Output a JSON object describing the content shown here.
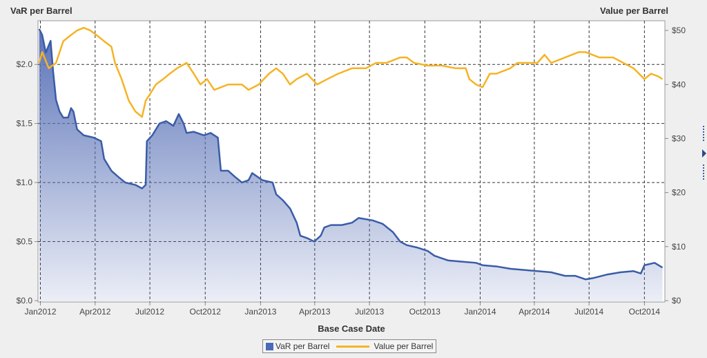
{
  "chart_data": {
    "type": "line",
    "title": "",
    "xlabel": "Base Case Date",
    "ylabel": "VaR per Barrel",
    "y2label": "Value per Barrel",
    "xlim": [
      "2011-12-28",
      "2014-11-04"
    ],
    "ylim": [
      0,
      2.37
    ],
    "y2lim": [
      0,
      51.8
    ],
    "yticks": [
      0,
      0.5,
      1.0,
      1.5,
      2.0
    ],
    "ytick_labels": [
      "$0.0",
      "$0.5",
      "$1.0",
      "$1.5",
      "$2.0"
    ],
    "y2ticks": [
      0,
      10,
      20,
      30,
      40,
      50
    ],
    "y2tick_labels": [
      "$0",
      "$10",
      "$20",
      "$30",
      "$40",
      "$50"
    ],
    "xticks": [
      "2012-01-01",
      "2012-04-01",
      "2012-07-01",
      "2012-10-01",
      "2013-01-01",
      "2013-04-01",
      "2013-07-01",
      "2013-10-01",
      "2014-01-01",
      "2014-04-01",
      "2014-07-01",
      "2014-10-01"
    ],
    "xtick_labels": [
      "Jan2012",
      "Apr2012",
      "Jul2012",
      "Oct2012",
      "Jan2013",
      "Apr2013",
      "Jul2013",
      "Oct2013",
      "Jan2014",
      "Apr2014",
      "Jul2014",
      "Oct2014"
    ],
    "grid": true,
    "legend_placement": "bottom",
    "colors": {
      "var_line": "#3a5ca8",
      "var_fill": "#5b73b8",
      "value_line": "#f5b324"
    },
    "series": [
      {
        "name": "VaR per Barrel",
        "axis": "left",
        "style": "area",
        "points": [
          [
            "2011-12-30",
            2.3
          ],
          [
            "2012-01-04",
            2.25
          ],
          [
            "2012-01-10",
            2.1
          ],
          [
            "2012-01-18",
            2.2
          ],
          [
            "2012-01-22",
            1.95
          ],
          [
            "2012-01-27",
            1.7
          ],
          [
            "2012-02-02",
            1.6
          ],
          [
            "2012-02-08",
            1.55
          ],
          [
            "2012-02-16",
            1.55
          ],
          [
            "2012-02-21",
            1.63
          ],
          [
            "2012-02-25",
            1.6
          ],
          [
            "2012-03-02",
            1.45
          ],
          [
            "2012-03-13",
            1.4
          ],
          [
            "2012-03-30",
            1.38
          ],
          [
            "2012-04-11",
            1.35
          ],
          [
            "2012-04-16",
            1.2
          ],
          [
            "2012-04-28",
            1.1
          ],
          [
            "2012-05-09",
            1.05
          ],
          [
            "2012-05-21",
            1.0
          ],
          [
            "2012-06-07",
            0.98
          ],
          [
            "2012-06-18",
            0.95
          ],
          [
            "2012-06-24",
            0.98
          ],
          [
            "2012-06-26",
            1.35
          ],
          [
            "2012-07-05",
            1.4
          ],
          [
            "2012-07-17",
            1.5
          ],
          [
            "2012-07-28",
            1.52
          ],
          [
            "2012-08-09",
            1.48
          ],
          [
            "2012-08-18",
            1.58
          ],
          [
            "2012-08-26",
            1.5
          ],
          [
            "2012-08-31",
            1.42
          ],
          [
            "2012-09-12",
            1.43
          ],
          [
            "2012-09-29",
            1.4
          ],
          [
            "2012-10-10",
            1.42
          ],
          [
            "2012-10-22",
            1.38
          ],
          [
            "2012-10-27",
            1.1
          ],
          [
            "2012-11-08",
            1.1
          ],
          [
            "2012-11-19",
            1.05
          ],
          [
            "2012-12-01",
            1.0
          ],
          [
            "2012-12-12",
            1.02
          ],
          [
            "2012-12-18",
            1.08
          ],
          [
            "2013-01-04",
            1.02
          ],
          [
            "2013-01-21",
            1.0
          ],
          [
            "2013-01-27",
            0.9
          ],
          [
            "2013-02-07",
            0.85
          ],
          [
            "2013-02-19",
            0.78
          ],
          [
            "2013-03-02",
            0.66
          ],
          [
            "2013-03-08",
            0.55
          ],
          [
            "2013-03-19",
            0.53
          ],
          [
            "2013-03-31",
            0.5
          ],
          [
            "2013-04-11",
            0.55
          ],
          [
            "2013-04-17",
            0.62
          ],
          [
            "2013-04-28",
            0.64
          ],
          [
            "2013-05-16",
            0.64
          ],
          [
            "2013-06-02",
            0.66
          ],
          [
            "2013-06-13",
            0.7
          ],
          [
            "2013-07-06",
            0.68
          ],
          [
            "2013-07-23",
            0.65
          ],
          [
            "2013-08-09",
            0.58
          ],
          [
            "2013-08-21",
            0.5
          ],
          [
            "2013-09-01",
            0.47
          ],
          [
            "2013-09-18",
            0.45
          ],
          [
            "2013-10-06",
            0.42
          ],
          [
            "2013-10-17",
            0.38
          ],
          [
            "2013-11-09",
            0.34
          ],
          [
            "2013-12-02",
            0.33
          ],
          [
            "2013-12-25",
            0.32
          ],
          [
            "2014-01-05",
            0.3
          ],
          [
            "2014-01-28",
            0.29
          ],
          [
            "2014-02-20",
            0.27
          ],
          [
            "2014-03-15",
            0.26
          ],
          [
            "2014-04-06",
            0.25
          ],
          [
            "2014-04-29",
            0.24
          ],
          [
            "2014-05-22",
            0.21
          ],
          [
            "2014-06-08",
            0.21
          ],
          [
            "2014-06-25",
            0.18
          ],
          [
            "2014-07-07",
            0.19
          ],
          [
            "2014-07-30",
            0.22
          ],
          [
            "2014-08-22",
            0.24
          ],
          [
            "2014-09-13",
            0.25
          ],
          [
            "2014-09-25",
            0.23
          ],
          [
            "2014-10-01",
            0.3
          ],
          [
            "2014-10-18",
            0.32
          ],
          [
            "2014-10-31",
            0.28
          ]
        ]
      },
      {
        "name": "Value per Barrel",
        "axis": "right",
        "style": "line",
        "points": [
          [
            "2011-12-30",
            44
          ],
          [
            "2012-01-04",
            46
          ],
          [
            "2012-01-15",
            43
          ],
          [
            "2012-01-27",
            44
          ],
          [
            "2012-02-08",
            48
          ],
          [
            "2012-02-19",
            49
          ],
          [
            "2012-03-02",
            50
          ],
          [
            "2012-03-13",
            50.5
          ],
          [
            "2012-03-24",
            50
          ],
          [
            "2012-04-05",
            49
          ],
          [
            "2012-04-16",
            48
          ],
          [
            "2012-04-28",
            47
          ],
          [
            "2012-05-04",
            44
          ],
          [
            "2012-05-15",
            41
          ],
          [
            "2012-05-27",
            37
          ],
          [
            "2012-06-07",
            35
          ],
          [
            "2012-06-18",
            34
          ],
          [
            "2012-06-24",
            37
          ],
          [
            "2012-06-30",
            38
          ],
          [
            "2012-07-11",
            40
          ],
          [
            "2012-07-23",
            41
          ],
          [
            "2012-08-03",
            42
          ],
          [
            "2012-08-15",
            43
          ],
          [
            "2012-08-31",
            44
          ],
          [
            "2012-09-12",
            42
          ],
          [
            "2012-09-23",
            40
          ],
          [
            "2012-10-04",
            41
          ],
          [
            "2012-10-16",
            39
          ],
          [
            "2012-11-08",
            40
          ],
          [
            "2012-12-01",
            40
          ],
          [
            "2012-12-12",
            39
          ],
          [
            "2012-12-29",
            40
          ],
          [
            "2013-01-15",
            42
          ],
          [
            "2013-01-27",
            43
          ],
          [
            "2013-02-07",
            42
          ],
          [
            "2013-02-19",
            40
          ],
          [
            "2013-03-02",
            41
          ],
          [
            "2013-03-19",
            42
          ],
          [
            "2013-04-05",
            40
          ],
          [
            "2013-04-22",
            41
          ],
          [
            "2013-05-10",
            42
          ],
          [
            "2013-06-02",
            43
          ],
          [
            "2013-06-25",
            43
          ],
          [
            "2013-07-12",
            44
          ],
          [
            "2013-07-29",
            44
          ],
          [
            "2013-08-21",
            45
          ],
          [
            "2013-09-01",
            45
          ],
          [
            "2013-09-13",
            44
          ],
          [
            "2013-10-06",
            43.5
          ],
          [
            "2013-10-29",
            43.5
          ],
          [
            "2013-11-21",
            43
          ],
          [
            "2013-12-08",
            43
          ],
          [
            "2013-12-14",
            41
          ],
          [
            "2013-12-25",
            40
          ],
          [
            "2014-01-05",
            39.5
          ],
          [
            "2014-01-17",
            42
          ],
          [
            "2014-01-28",
            42
          ],
          [
            "2014-02-20",
            43
          ],
          [
            "2014-03-04",
            44
          ],
          [
            "2014-03-15",
            44
          ],
          [
            "2014-04-06",
            44
          ],
          [
            "2014-04-18",
            45.5
          ],
          [
            "2014-04-29",
            44
          ],
          [
            "2014-05-22",
            45
          ],
          [
            "2014-06-14",
            46
          ],
          [
            "2014-06-25",
            46
          ],
          [
            "2014-07-18",
            45
          ],
          [
            "2014-08-10",
            45
          ],
          [
            "2014-08-27",
            44
          ],
          [
            "2014-09-13",
            43
          ],
          [
            "2014-10-01",
            41
          ],
          [
            "2014-10-12",
            42
          ],
          [
            "2014-10-24",
            41.5
          ],
          [
            "2014-10-31",
            41
          ]
        ]
      }
    ]
  }
}
